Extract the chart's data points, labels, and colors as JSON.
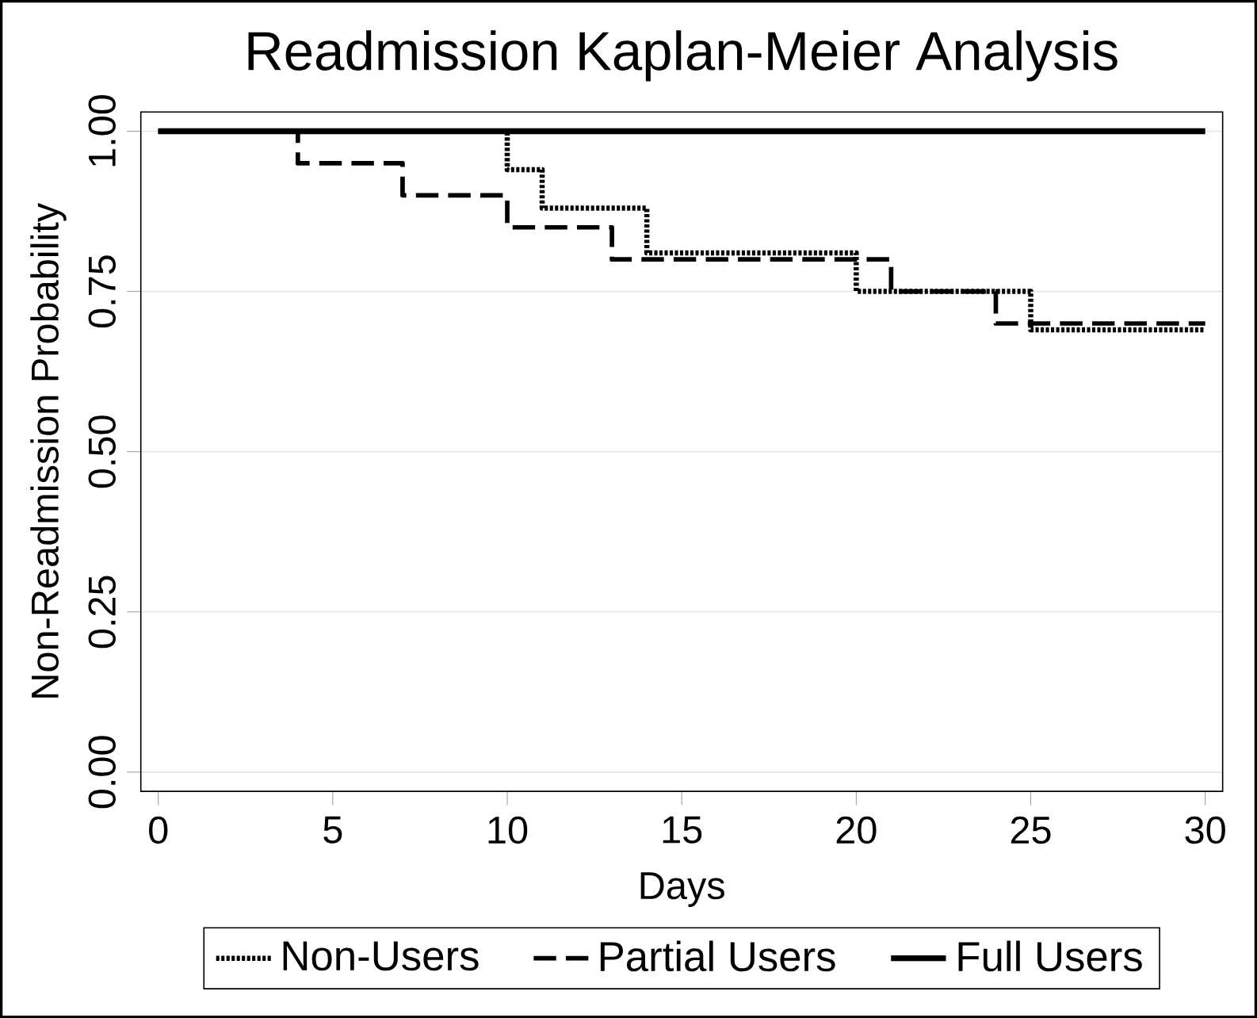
{
  "chart_data": {
    "type": "step",
    "title": "Readmission Kaplan-Meier Analysis",
    "xlabel": "Days",
    "ylabel": "Non-Readmission Probability",
    "xlim": [
      -0.5,
      30.5
    ],
    "ylim": [
      -0.03,
      1.03
    ],
    "xticks": [
      0,
      5,
      10,
      15,
      20,
      25,
      30
    ],
    "yticks": [
      {
        "value": 0,
        "label": "0.00"
      },
      {
        "value": 0.25,
        "label": "0.25"
      },
      {
        "value": 0.5,
        "label": "0.50"
      },
      {
        "value": 0.75,
        "label": "0.75"
      },
      {
        "value": 1,
        "label": "1.00"
      }
    ],
    "grid": "y",
    "legend": "bottom",
    "series": [
      {
        "name": "Non-Users",
        "color": "#000000",
        "line_style": "dotted",
        "x": [
          0,
          10,
          11,
          14,
          20,
          25,
          30
        ],
        "values": [
          1,
          0.94,
          0.88,
          0.81,
          0.75,
          0.69,
          0.69
        ]
      },
      {
        "name": "Partial Users",
        "color": "#000000",
        "line_style": "dashed",
        "x": [
          0,
          4,
          7,
          10,
          13,
          21,
          24,
          30
        ],
        "values": [
          1,
          0.95,
          0.9,
          0.85,
          0.8,
          0.75,
          0.7,
          0.7
        ]
      },
      {
        "name": "Full Users",
        "color": "#000000",
        "line_style": "solid",
        "x": [
          0,
          30
        ],
        "values": [
          1,
          1
        ]
      }
    ]
  }
}
